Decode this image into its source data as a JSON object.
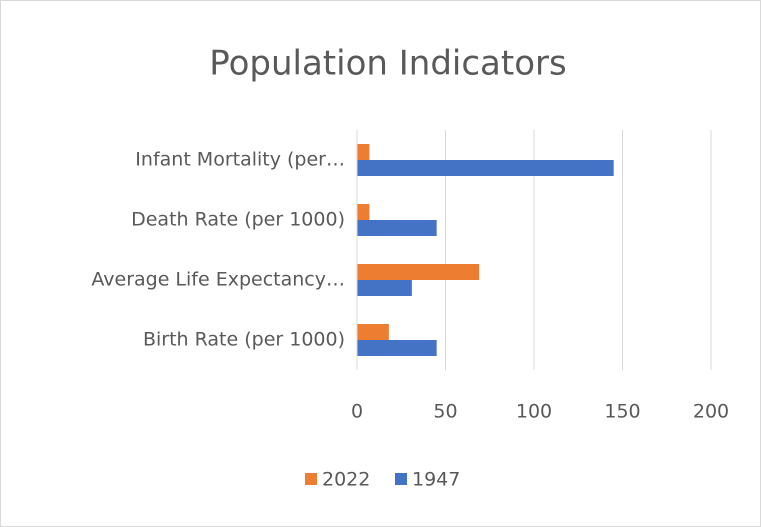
{
  "chart_data": {
    "type": "bar",
    "orientation": "horizontal",
    "title": "Population Indicators",
    "categories": [
      "Infant Mortality (per…",
      "Death Rate (per 1000)",
      "Average Life Expectancy…",
      "Birth Rate (per 1000)"
    ],
    "series": [
      {
        "name": "2022",
        "color": "#ed7d31",
        "values": [
          7,
          7,
          69,
          18
        ]
      },
      {
        "name": "1947",
        "color": "#4472c4",
        "values": [
          145,
          45,
          31,
          45
        ]
      }
    ],
    "xlim": [
      0,
      200
    ],
    "xticks": [
      0,
      50,
      100,
      150,
      200
    ],
    "grid": true,
    "legend": "bottom"
  }
}
